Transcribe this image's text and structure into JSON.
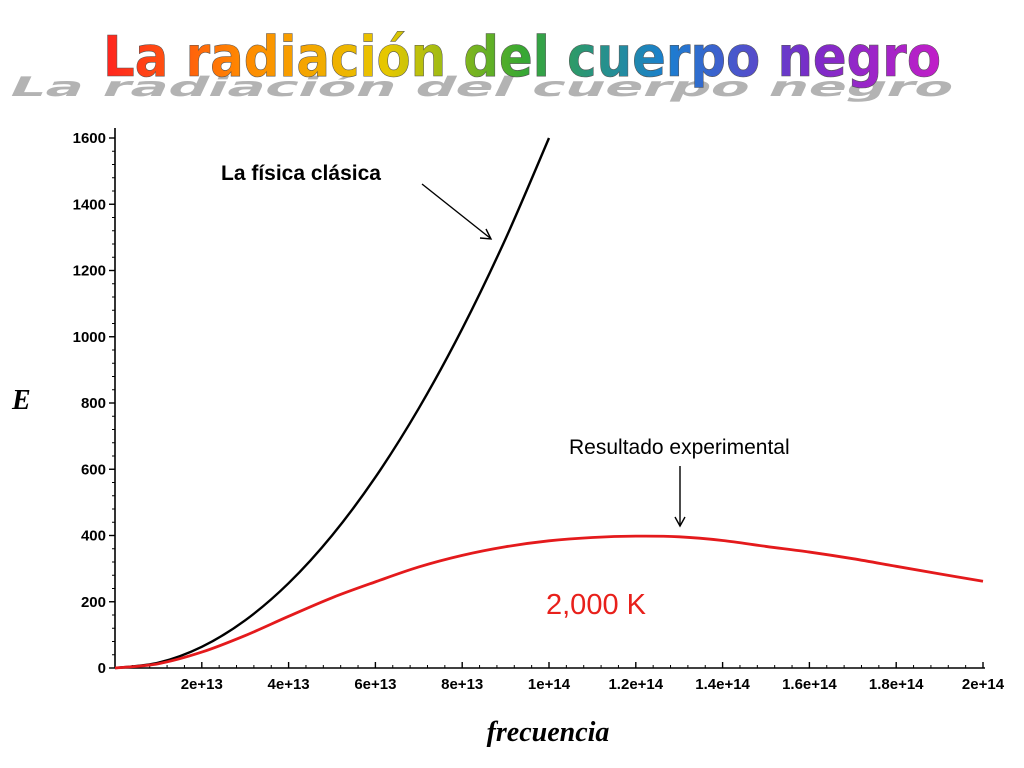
{
  "title": "La radiación del cuerpo negro",
  "colors": {
    "classical_curve": "#000000",
    "experimental_curve": "#e41a1c",
    "temperature_label": "#e8201b",
    "title_gradient": [
      "#ff2020",
      "#ff8a00",
      "#e6c800",
      "#38a832",
      "#1a7fd0",
      "#7a2cc8",
      "#c41ec8"
    ],
    "title_shadow": "#9a9a9a"
  },
  "chart_data": {
    "type": "line",
    "xlabel": "frecuencia",
    "ylabel": "E",
    "xlim": [
      0,
      200000000000000
    ],
    "ylim": [
      0,
      1600
    ],
    "x_ticks": [
      20000000000000,
      40000000000000,
      60000000000000,
      80000000000000,
      100000000000000,
      120000000000000,
      140000000000000,
      160000000000000,
      180000000000000,
      200000000000000
    ],
    "x_tick_labels": [
      "2e+13",
      "4e+13",
      "6e+13",
      "8e+13",
      "1e+14",
      "1.2e+14",
      "1.4e+14",
      "1.6e+14",
      "1.8e+14",
      "2e+14"
    ],
    "y_ticks": [
      0,
      200,
      400,
      600,
      800,
      1000,
      1200,
      1400,
      1600
    ],
    "y_tick_labels": [
      "0",
      "200",
      "400",
      "600",
      "800",
      "1000",
      "1200",
      "1400",
      "1600"
    ],
    "grid": false,
    "series": [
      {
        "key": "classical",
        "x": [
          0,
          10000000000000,
          20000000000000,
          30000000000000,
          40000000000000,
          50000000000000,
          60000000000000,
          70000000000000,
          80000000000000,
          90000000000000,
          100000000000000
        ],
        "y": [
          0,
          16,
          64,
          144,
          256,
          400,
          576,
          784,
          1024,
          1296,
          1600
        ]
      },
      {
        "key": "experimental",
        "x": [
          0,
          10000000000000,
          20000000000000,
          30000000000000,
          40000000000000,
          50000000000000,
          60000000000000,
          70000000000000,
          80000000000000,
          90000000000000,
          100000000000000,
          110000000000000,
          120000000000000,
          130000000000000,
          140000000000000,
          150000000000000,
          160000000000000,
          170000000000000,
          180000000000000,
          190000000000000,
          200000000000000
        ],
        "y": [
          0,
          13,
          48,
          98,
          156,
          212,
          260,
          305,
          340,
          366,
          384,
          394,
          398,
          396,
          385,
          367,
          350,
          330,
          307,
          284,
          262
        ]
      }
    ],
    "annotations": {
      "classical_label": "La física clásica",
      "experimental_label": "Resultado experimental",
      "temperature": "2,000 K"
    }
  }
}
